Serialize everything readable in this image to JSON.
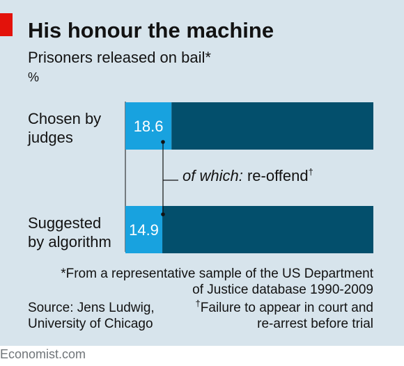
{
  "header": {
    "title": "His honour the machine",
    "subtitle": "Prisoners released on bail*",
    "unit": "%"
  },
  "chart_data": {
    "type": "bar",
    "orientation": "horizontal",
    "stacked": true,
    "categories": [
      "Chosen by judges",
      "Suggested by algorithm"
    ],
    "category_lines": [
      [
        "Chosen by",
        "judges"
      ],
      [
        "Suggested",
        "by algorithm"
      ]
    ],
    "series": [
      {
        "name": "of which: re-offend",
        "values": [
          18.6,
          14.9
        ],
        "color": "#18a2df"
      },
      {
        "name": "",
        "values": [
          81.4,
          85.1
        ],
        "color": "#034f6c"
      }
    ],
    "data_labels": [
      "18.6",
      "14.9"
    ],
    "xlim": [
      0,
      100
    ],
    "annotation": {
      "italic": "of which:",
      "text": " re-offend",
      "mark": "†"
    }
  },
  "notes": {
    "sample_lines": [
      "*From a representative sample of the US Department",
      "of Justice database 1990-2009"
    ],
    "failure_mark": "†",
    "failure_lines": [
      "Failure to appear in court and",
      "re-arrest before trial"
    ]
  },
  "source": {
    "lines": [
      "Source: Jens Ludwig,",
      "University of Chicago"
    ]
  },
  "footer": {
    "brand": "Economist.com"
  },
  "colors": {
    "background": "#d7e4ec",
    "accent_red": "#e3120b",
    "reoffend": "#18a2df",
    "total": "#034f6c"
  }
}
